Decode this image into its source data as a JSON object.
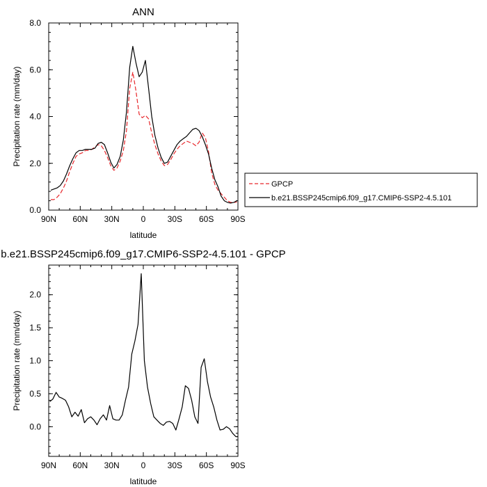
{
  "chart_data": [
    {
      "type": "line",
      "title": "ANN",
      "xlabel": "latitude",
      "ylabel": "Precipitation rate (mm/day)",
      "xlim": [
        90,
        -90
      ],
      "ylim": [
        0,
        8
      ],
      "x_tick_values": [
        90,
        60,
        30,
        0,
        -30,
        -60,
        -90
      ],
      "x_tick_labels": [
        "90N",
        "60N",
        "30N",
        "0",
        "30S",
        "60S",
        "90S"
      ],
      "y_tick_values": [
        0,
        2,
        4,
        6,
        8
      ],
      "y_tick_labels": [
        "0.0",
        "2.0",
        "4.0",
        "6.0",
        "8.0"
      ],
      "legend_position": "right",
      "x": [
        88,
        85,
        82,
        79,
        76,
        73,
        70,
        67,
        64,
        61,
        58,
        55,
        52,
        49,
        46,
        43,
        40,
        37,
        34,
        31,
        28,
        25,
        22,
        19,
        16,
        13,
        10,
        7,
        4,
        1,
        -2,
        -5,
        -8,
        -11,
        -14,
        -17,
        -20,
        -23,
        -26,
        -29,
        -32,
        -35,
        -38,
        -41,
        -44,
        -47,
        -50,
        -53,
        -56,
        -59,
        -62,
        -65,
        -68,
        -71,
        -74,
        -77,
        -80,
        -83,
        -86,
        -89
      ],
      "series": [
        {
          "name": "GPCP",
          "color": "#e8262a",
          "dash": "dashed",
          "values": [
            0.45,
            0.45,
            0.55,
            0.7,
            0.95,
            1.25,
            1.65,
            2.0,
            2.3,
            2.4,
            2.45,
            2.55,
            2.55,
            2.6,
            2.7,
            2.8,
            2.75,
            2.55,
            2.25,
            1.9,
            1.7,
            1.8,
            2.1,
            2.55,
            3.4,
            5.2,
            5.9,
            5.1,
            4.1,
            3.95,
            4.05,
            3.9,
            3.3,
            2.8,
            2.4,
            2.1,
            1.9,
            1.95,
            2.15,
            2.4,
            2.6,
            2.75,
            2.85,
            2.95,
            2.9,
            2.85,
            2.75,
            2.9,
            3.3,
            3.1,
            2.5,
            1.6,
            1.1,
            0.85,
            0.7,
            0.55,
            0.4,
            0.33,
            0.32,
            0.35
          ]
        },
        {
          "name": "b.e21.BSSP245cmip6.f09_g17.CMIP6-SSP2-4.5.101",
          "color": "#000000",
          "dash": "solid",
          "values": [
            0.85,
            0.9,
            0.95,
            1.05,
            1.25,
            1.55,
            1.9,
            2.2,
            2.45,
            2.55,
            2.55,
            2.6,
            2.6,
            2.6,
            2.65,
            2.85,
            2.9,
            2.8,
            2.45,
            2.05,
            1.8,
            1.95,
            2.3,
            3.0,
            4.2,
            6.1,
            7.0,
            6.3,
            5.7,
            5.9,
            6.4,
            5.2,
            4.0,
            3.2,
            2.65,
            2.25,
            2.0,
            2.05,
            2.3,
            2.55,
            2.8,
            2.95,
            3.05,
            3.15,
            3.3,
            3.45,
            3.5,
            3.4,
            3.15,
            2.8,
            2.4,
            1.8,
            1.3,
            1.0,
            0.6,
            0.4,
            0.33,
            0.3,
            0.33,
            0.4
          ]
        }
      ]
    },
    {
      "type": "line",
      "title": "b.e21.BSSP245cmip6.f09_g17.CMIP6-SSP2-4.5.101 - GPCP",
      "xlabel": "latitude",
      "ylabel": "Precipitation rate (mm/day)",
      "xlim": [
        90,
        -90
      ],
      "ylim": [
        -0.45,
        2.45
      ],
      "x_tick_values": [
        90,
        60,
        30,
        0,
        -30,
        -60,
        -90
      ],
      "x_tick_labels": [
        "90N",
        "60N",
        "30N",
        "0",
        "30S",
        "60S",
        "90S"
      ],
      "y_tick_values": [
        0,
        0.5,
        1,
        1.5,
        2
      ],
      "y_tick_labels": [
        "0.0",
        "0.5",
        "1.0",
        "1.5",
        "2.0"
      ],
      "x": [
        89,
        86,
        83,
        80,
        77,
        74,
        71,
        68,
        65,
        62,
        59,
        56,
        53,
        50,
        47,
        44,
        41,
        38,
        35,
        32,
        29,
        26,
        23,
        20,
        17,
        14,
        11,
        8,
        5,
        2,
        -1,
        -4,
        -7,
        -10,
        -13,
        -16,
        -19,
        -22,
        -25,
        -28,
        -31,
        -34,
        -37,
        -40,
        -43,
        -46,
        -49,
        -52,
        -55,
        -58,
        -61,
        -64,
        -67,
        -70,
        -73,
        -76,
        -79,
        -82,
        -85,
        -88,
        -90
      ],
      "series": [
        {
          "color": "#000000",
          "values": [
            0.38,
            0.42,
            0.52,
            0.45,
            0.43,
            0.4,
            0.3,
            0.15,
            0.22,
            0.16,
            0.26,
            0.06,
            0.12,
            0.15,
            0.1,
            0.03,
            0.12,
            0.18,
            0.1,
            0.32,
            0.12,
            0.1,
            0.1,
            0.18,
            0.4,
            0.6,
            1.1,
            1.3,
            1.55,
            2.32,
            1.0,
            0.6,
            0.35,
            0.15,
            0.1,
            0.05,
            0.02,
            0.07,
            0.08,
            0.05,
            -0.05,
            0.12,
            0.3,
            0.62,
            0.58,
            0.4,
            0.15,
            0.05,
            0.9,
            1.03,
            0.68,
            0.45,
            0.3,
            0.1,
            -0.05,
            -0.04,
            0.0,
            -0.03,
            -0.1,
            -0.15,
            -0.15
          ]
        }
      ]
    }
  ]
}
